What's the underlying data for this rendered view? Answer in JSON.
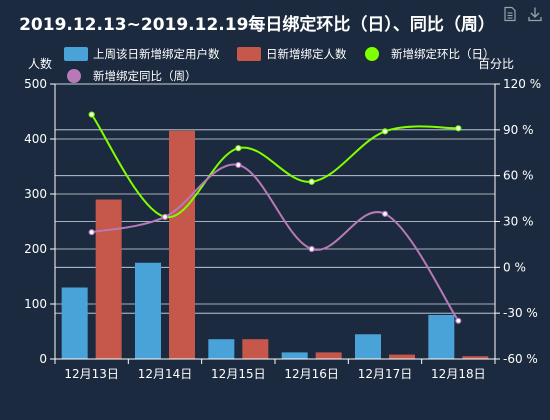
{
  "toolbox": {
    "data_view_icon": "data-view-icon",
    "save_image_icon": "download-icon"
  },
  "chart_data": {
    "type": "bar",
    "title": "2019.12.13~2019.12.19每日绑定环比（日）、同比（周）",
    "categories": [
      "12月13日",
      "12月14日",
      "12月15日",
      "12月16日",
      "12月17日",
      "12月18日"
    ],
    "y_left": {
      "name": "人数",
      "min": 0,
      "max": 500,
      "ticks": [
        "0",
        "100",
        "200",
        "300",
        "400",
        "500"
      ]
    },
    "y_right": {
      "name": "百分比",
      "min": -60,
      "max": 120,
      "ticks": [
        "-60 %",
        "-30 %",
        "0 %",
        "30 %",
        "60 %",
        "90 %",
        "120 %"
      ]
    },
    "grid": true,
    "legend_position": "top",
    "series": [
      {
        "name": "上周该日新增绑定用户数",
        "type": "bar",
        "axis": "left",
        "color": "#4aa3d8",
        "values": [
          130,
          175,
          36,
          12,
          45,
          80
        ]
      },
      {
        "name": "日新增绑定人数",
        "type": "bar",
        "axis": "left",
        "color": "#c6574b",
        "values": [
          290,
          415,
          36,
          12,
          8,
          5
        ]
      },
      {
        "name": "新增绑定环比（日）",
        "type": "line",
        "axis": "right",
        "color": "#7fff00",
        "values": [
          100,
          33,
          78,
          56,
          89,
          91
        ]
      },
      {
        "name": "新增绑定同比（周）",
        "type": "line",
        "axis": "right",
        "color": "#b77ab6",
        "values": [
          23,
          33,
          67,
          12,
          35,
          -35
        ]
      }
    ]
  }
}
